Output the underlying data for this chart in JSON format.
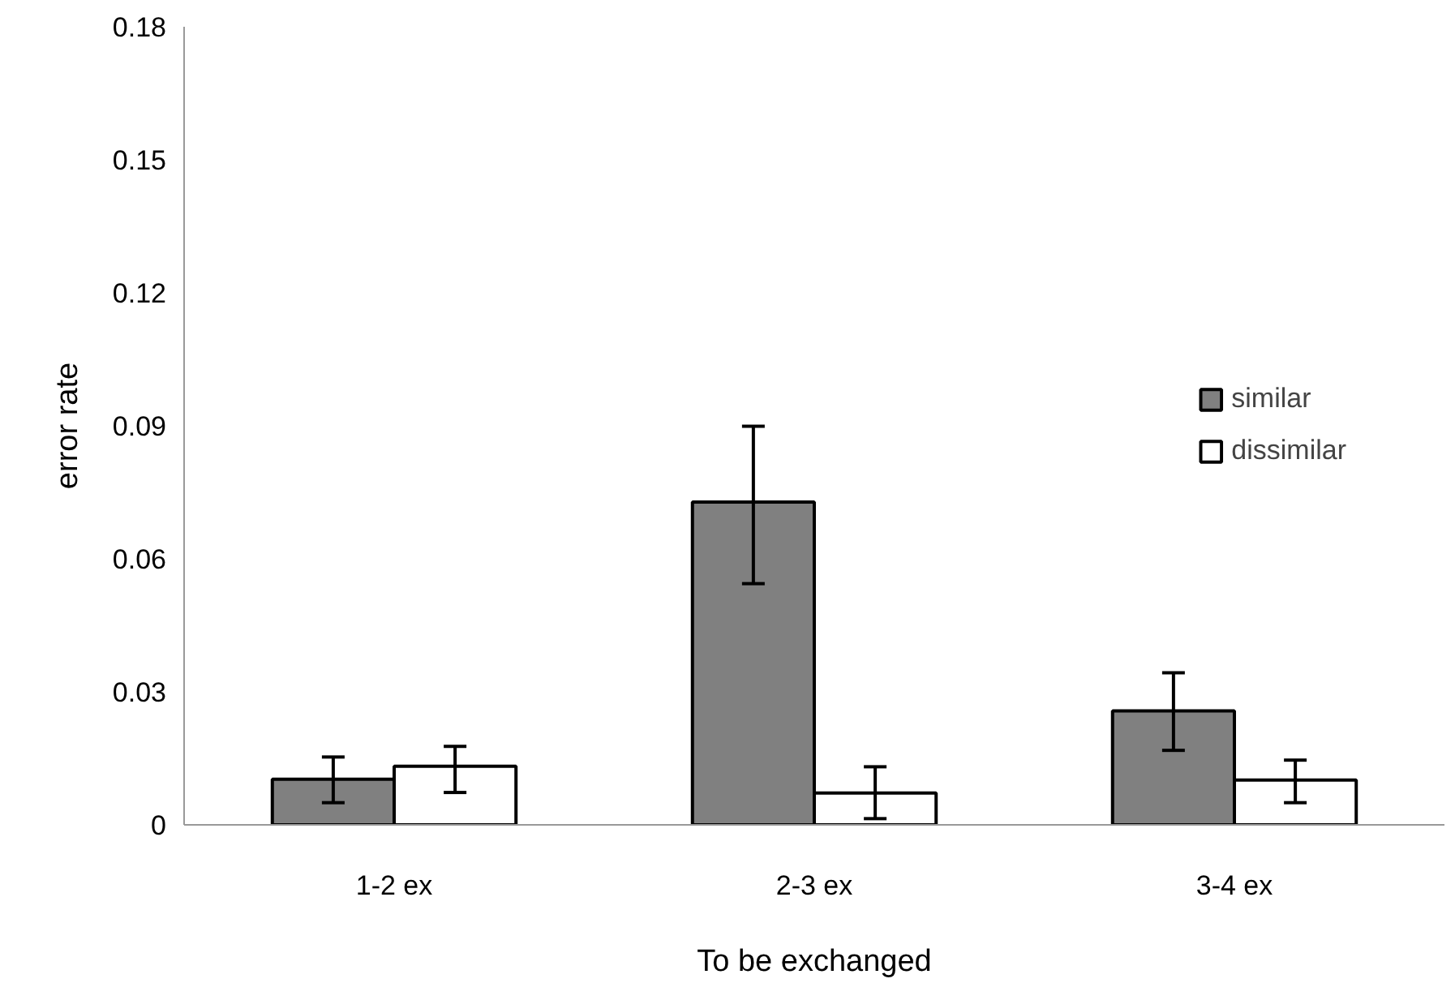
{
  "chart_data": {
    "type": "bar",
    "xlabel": "To be exchanged",
    "ylabel": "error rate",
    "categories": [
      "1-2 ex",
      "2-3 ex",
      "3-4 ex"
    ],
    "series": [
      {
        "name": "similar",
        "color": "#808080",
        "values": [
          0.0103,
          0.0728,
          0.0257
        ],
        "errors": [
          [
            0.005,
            0.0153
          ],
          [
            0.0544,
            0.0899
          ],
          [
            0.0168,
            0.0343
          ]
        ]
      },
      {
        "name": "dissimilar",
        "color": "#ffffff",
        "values": [
          0.0132,
          0.0072,
          0.0101
        ],
        "errors": [
          [
            0.0073,
            0.0177
          ],
          [
            0.0014,
            0.0131
          ],
          [
            0.005,
            0.0146
          ]
        ]
      }
    ],
    "ylim": [
      0,
      0.18
    ],
    "yticks": [
      0,
      0.03,
      0.06,
      0.09,
      0.12,
      0.15,
      0.18
    ],
    "grid": false,
    "legend": "right"
  }
}
